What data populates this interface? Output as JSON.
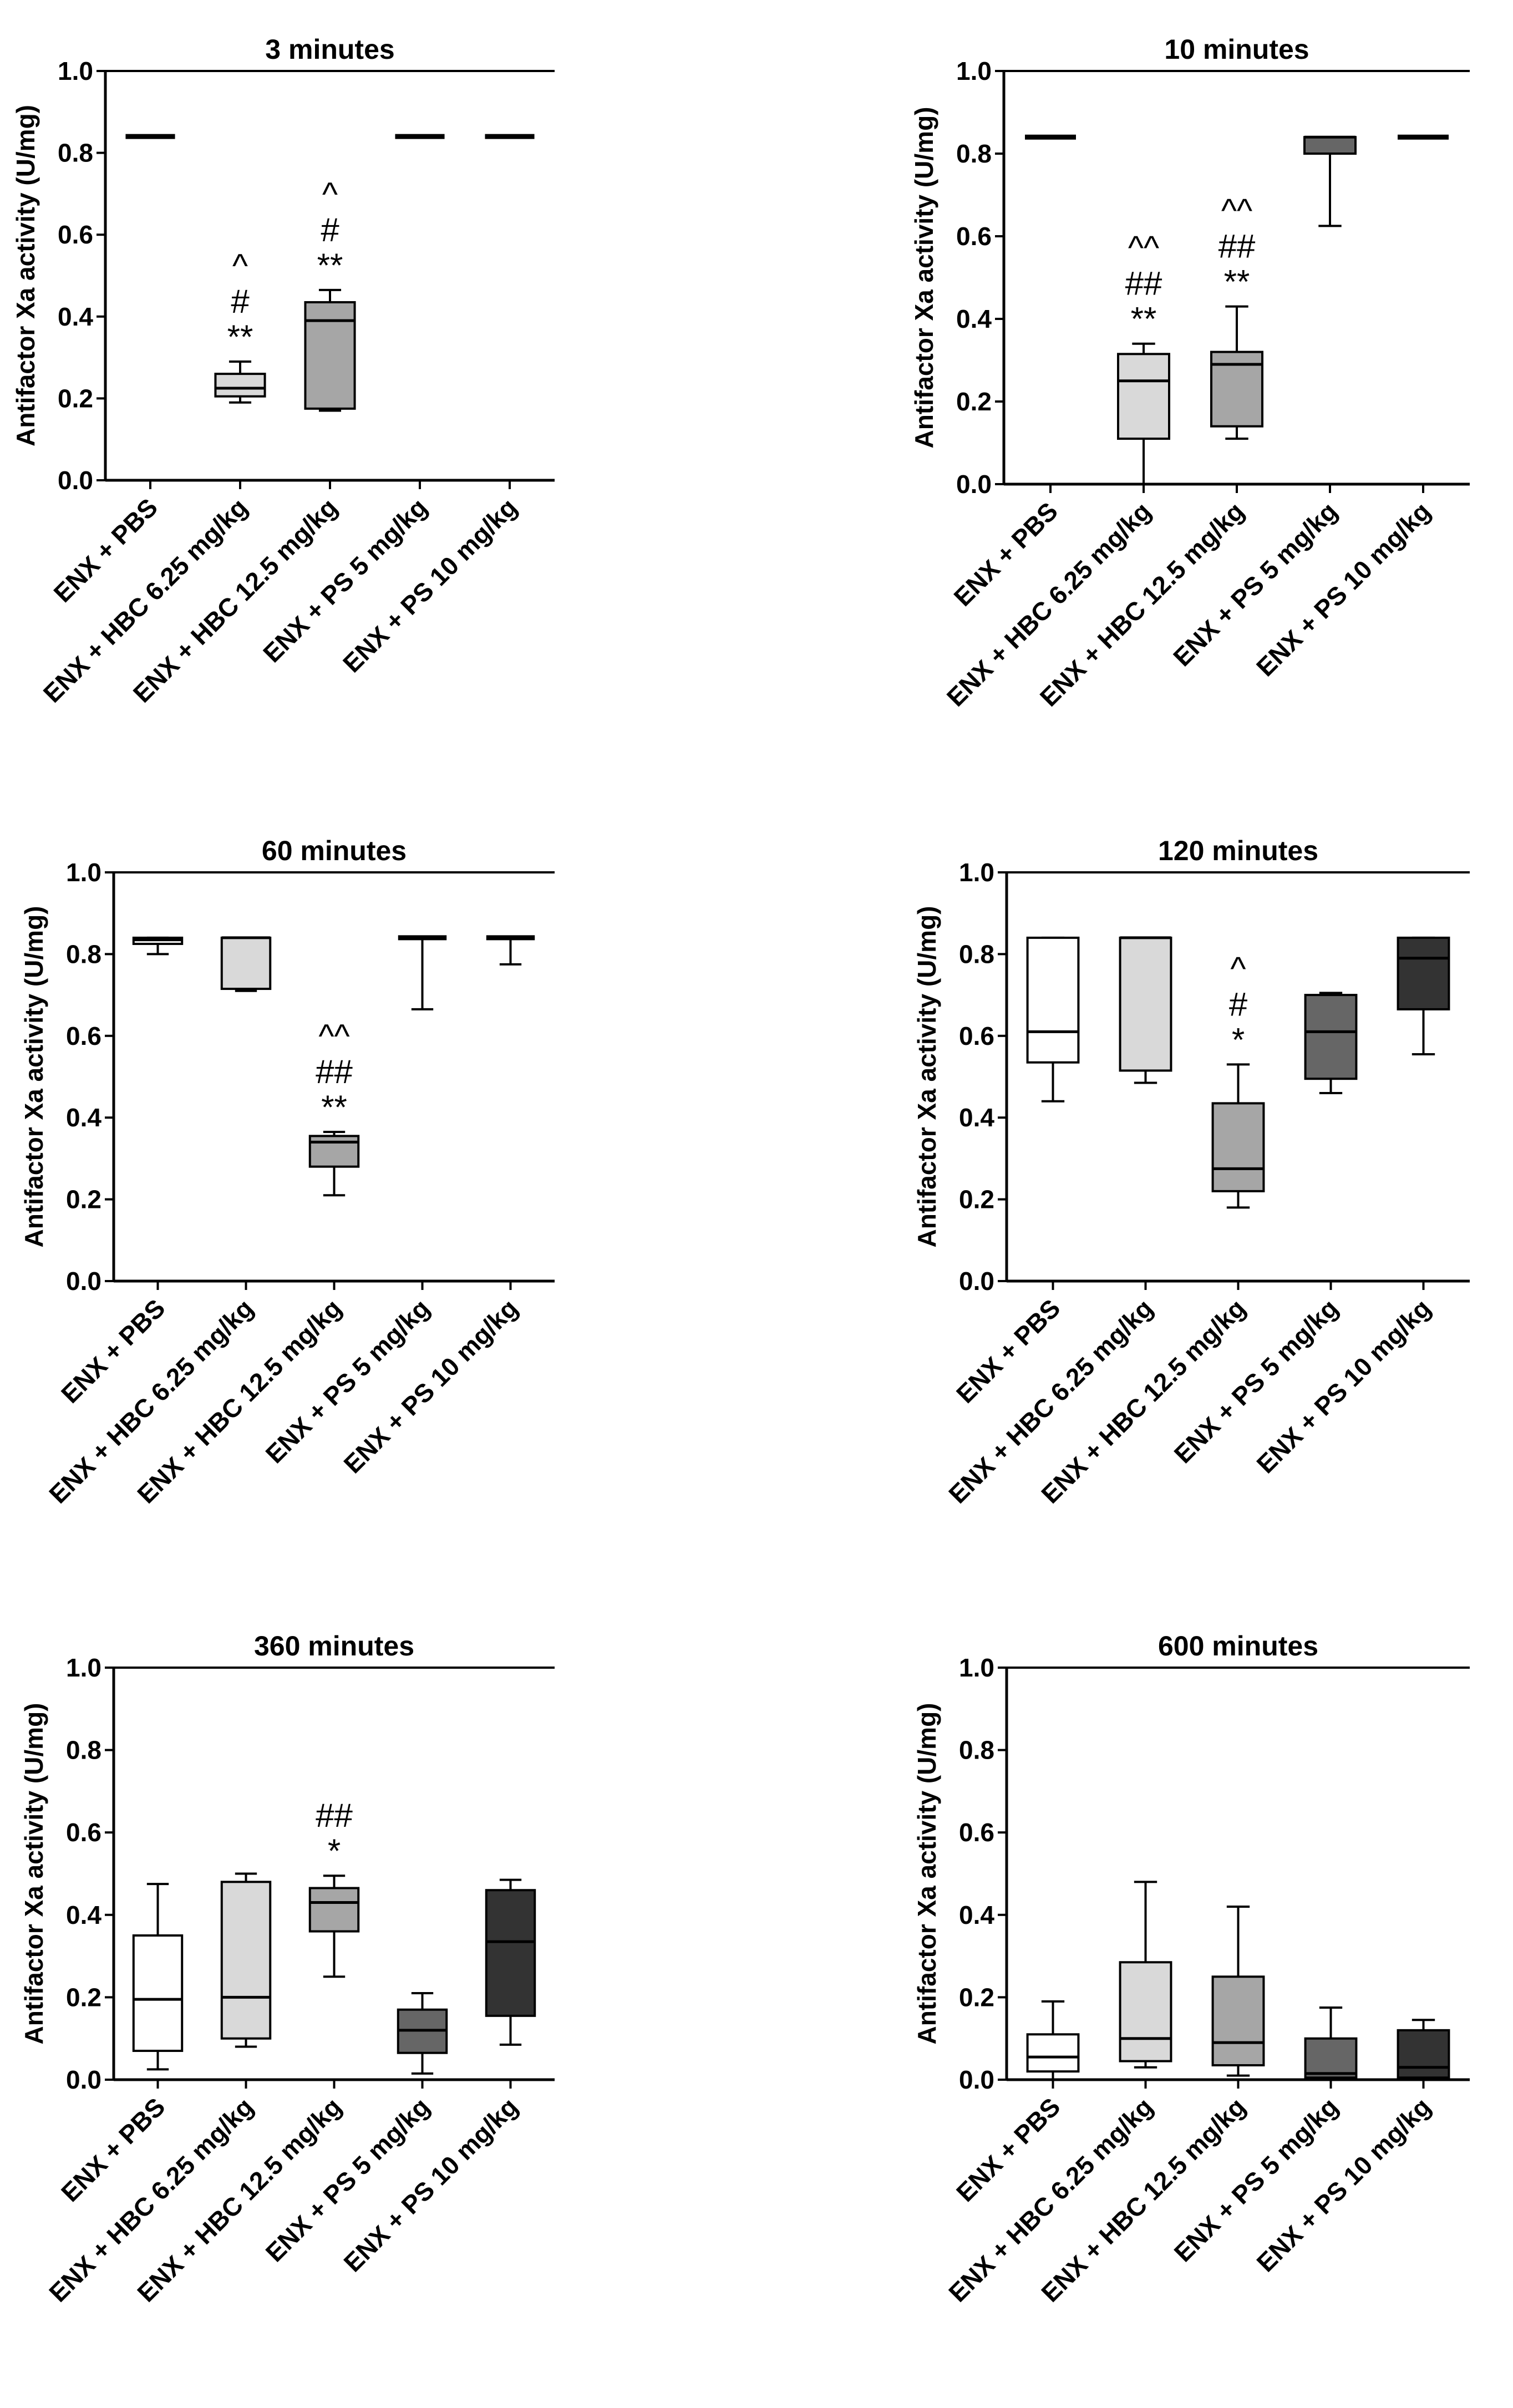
{
  "figure": {
    "ylabel": "Antifactor Xa activity (U/mg)"
  },
  "chart_data": [
    {
      "type": "box",
      "title": "3 minutes",
      "ylabel": "Antifactor Xa activity (U/mg)",
      "ylim": [
        0,
        1.0
      ],
      "yticks": [
        "0.0",
        "0.2",
        "0.4",
        "0.6",
        "0.8",
        "1.0"
      ],
      "categories": [
        "ENX + PBS",
        "ENX + HBC 6.25 mg/kg",
        "ENX + HBC 12.5 mg/kg",
        "ENX + PS 5 mg/kg",
        "ENX + PS 10 mg/kg"
      ],
      "boxes": [
        {
          "min": 0.84,
          "q1": 0.84,
          "median": 0.84,
          "q3": 0.84,
          "max": 0.84,
          "fill": "#ffffff",
          "annotations": []
        },
        {
          "min": 0.19,
          "q1": 0.205,
          "median": 0.225,
          "q3": 0.26,
          "max": 0.29,
          "fill": "#d9d9d9",
          "annotations": [
            "^",
            "#",
            "**"
          ]
        },
        {
          "min": 0.17,
          "q1": 0.175,
          "median": 0.39,
          "q3": 0.435,
          "max": 0.465,
          "fill": "#a6a6a6",
          "annotations": [
            "^",
            "#",
            "**"
          ]
        },
        {
          "min": 0.84,
          "q1": 0.84,
          "median": 0.84,
          "q3": 0.84,
          "max": 0.84,
          "fill": "#666666",
          "annotations": []
        },
        {
          "min": 0.84,
          "q1": 0.84,
          "median": 0.84,
          "q3": 0.84,
          "max": 0.84,
          "fill": "#333333",
          "annotations": []
        }
      ]
    },
    {
      "type": "box",
      "title": "10 minutes",
      "ylabel": "Antifactor Xa activity (U/mg)",
      "ylim": [
        0,
        1.0
      ],
      "yticks": [
        "0.0",
        "0.2",
        "0.4",
        "0.6",
        "0.8",
        "1.0"
      ],
      "categories": [
        "ENX + PBS",
        "ENX + HBC 6.25 mg/kg",
        "ENX + HBC 12.5 mg/kg",
        "ENX + PS 5 mg/kg",
        "ENX + PS 10 mg/kg"
      ],
      "boxes": [
        {
          "min": 0.84,
          "q1": 0.84,
          "median": 0.84,
          "q3": 0.84,
          "max": 0.84,
          "fill": "#ffffff",
          "annotations": []
        },
        {
          "min": 0.0,
          "q1": 0.11,
          "median": 0.25,
          "q3": 0.315,
          "max": 0.34,
          "fill": "#d9d9d9",
          "annotations": [
            "^^",
            "##",
            "**"
          ]
        },
        {
          "min": 0.11,
          "q1": 0.14,
          "median": 0.29,
          "q3": 0.32,
          "max": 0.43,
          "fill": "#a6a6a6",
          "annotations": [
            "^^",
            "##",
            "**"
          ]
        },
        {
          "min": 0.625,
          "q1": 0.8,
          "median": 0.84,
          "q3": 0.84,
          "max": 0.84,
          "fill": "#666666",
          "annotations": []
        },
        {
          "min": 0.84,
          "q1": 0.84,
          "median": 0.84,
          "q3": 0.84,
          "max": 0.84,
          "fill": "#333333",
          "annotations": []
        }
      ]
    },
    {
      "type": "box",
      "title": "60 minutes",
      "ylabel": "Antifactor Xa activity (U/mg)",
      "ylim": [
        0,
        1.0
      ],
      "yticks": [
        "0.0",
        "0.2",
        "0.4",
        "0.6",
        "0.8",
        "1.0"
      ],
      "categories": [
        "ENX + PBS",
        "ENX + HBC 6.25 mg/kg",
        "ENX + HBC 12.5 mg/kg",
        "ENX + PS 5 mg/kg",
        "ENX + PS 10 mg/kg"
      ],
      "boxes": [
        {
          "min": 0.8,
          "q1": 0.825,
          "median": 0.835,
          "q3": 0.84,
          "max": 0.84,
          "fill": "#ffffff",
          "annotations": []
        },
        {
          "min": 0.71,
          "q1": 0.715,
          "median": 0.84,
          "q3": 0.84,
          "max": 0.84,
          "fill": "#d9d9d9",
          "annotations": []
        },
        {
          "min": 0.21,
          "q1": 0.28,
          "median": 0.34,
          "q3": 0.355,
          "max": 0.365,
          "fill": "#a6a6a6",
          "annotations": [
            "^^",
            "##",
            "**"
          ]
        },
        {
          "min": 0.665,
          "q1": 0.84,
          "median": 0.84,
          "q3": 0.84,
          "max": 0.84,
          "fill": "#666666",
          "annotations": []
        },
        {
          "min": 0.775,
          "q1": 0.84,
          "median": 0.84,
          "q3": 0.84,
          "max": 0.84,
          "fill": "#333333",
          "annotations": []
        }
      ]
    },
    {
      "type": "box",
      "title": "120 minutes",
      "ylabel": "Antifactor Xa activity (U/mg)",
      "ylim": [
        0,
        1.0
      ],
      "yticks": [
        "0.0",
        "0.2",
        "0.4",
        "0.6",
        "0.8",
        "1.0"
      ],
      "categories": [
        "ENX + PBS",
        "ENX + HBC 6.25 mg/kg",
        "ENX + HBC 12.5 mg/kg",
        "ENX + PS 5 mg/kg",
        "ENX + PS 10 mg/kg"
      ],
      "boxes": [
        {
          "min": 0.44,
          "q1": 0.535,
          "median": 0.61,
          "q3": 0.84,
          "max": 0.84,
          "fill": "#ffffff",
          "annotations": []
        },
        {
          "min": 0.485,
          "q1": 0.515,
          "median": 0.84,
          "q3": 0.84,
          "max": 0.84,
          "fill": "#d9d9d9",
          "annotations": []
        },
        {
          "min": 0.18,
          "q1": 0.22,
          "median": 0.275,
          "q3": 0.435,
          "max": 0.53,
          "fill": "#a6a6a6",
          "annotations": [
            "^",
            "#",
            "*"
          ]
        },
        {
          "min": 0.46,
          "q1": 0.495,
          "median": 0.61,
          "q3": 0.7,
          "max": 0.705,
          "fill": "#666666",
          "annotations": []
        },
        {
          "min": 0.555,
          "q1": 0.665,
          "median": 0.79,
          "q3": 0.84,
          "max": 0.84,
          "fill": "#333333",
          "annotations": []
        }
      ]
    },
    {
      "type": "box",
      "title": "360 minutes",
      "ylabel": "Antifactor Xa activity (U/mg)",
      "ylim": [
        0,
        1.0
      ],
      "yticks": [
        "0.0",
        "0.2",
        "0.4",
        "0.6",
        "0.8",
        "1.0"
      ],
      "categories": [
        "ENX + PBS",
        "ENX + HBC 6.25 mg/kg",
        "ENX + HBC 12.5 mg/kg",
        "ENX + PS 5 mg/kg",
        "ENX + PS 10 mg/kg"
      ],
      "boxes": [
        {
          "min": 0.025,
          "q1": 0.07,
          "median": 0.195,
          "q3": 0.35,
          "max": 0.475,
          "fill": "#ffffff",
          "annotations": []
        },
        {
          "min": 0.08,
          "q1": 0.1,
          "median": 0.2,
          "q3": 0.48,
          "max": 0.5,
          "fill": "#d9d9d9",
          "annotations": []
        },
        {
          "min": 0.25,
          "q1": 0.36,
          "median": 0.43,
          "q3": 0.465,
          "max": 0.495,
          "fill": "#a6a6a6",
          "annotations": [
            "##",
            "*"
          ]
        },
        {
          "min": 0.015,
          "q1": 0.065,
          "median": 0.12,
          "q3": 0.17,
          "max": 0.21,
          "fill": "#666666",
          "annotations": []
        },
        {
          "min": 0.085,
          "q1": 0.155,
          "median": 0.335,
          "q3": 0.46,
          "max": 0.485,
          "fill": "#333333",
          "annotations": []
        }
      ]
    },
    {
      "type": "box",
      "title": "600 minutes",
      "ylabel": "Antifactor Xa activity (U/mg)",
      "ylim": [
        0,
        1.0
      ],
      "yticks": [
        "0.0",
        "0.2",
        "0.4",
        "0.6",
        "0.8",
        "1.0"
      ],
      "categories": [
        "ENX + PBS",
        "ENX + HBC 6.25 mg/kg",
        "ENX + HBC 12.5 mg/kg",
        "ENX + PS 5 mg/kg",
        "ENX + PS 10 mg/kg"
      ],
      "boxes": [
        {
          "min": 0.0,
          "q1": 0.02,
          "median": 0.055,
          "q3": 0.11,
          "max": 0.19,
          "fill": "#ffffff",
          "annotations": []
        },
        {
          "min": 0.03,
          "q1": 0.045,
          "median": 0.1,
          "q3": 0.285,
          "max": 0.48,
          "fill": "#d9d9d9",
          "annotations": []
        },
        {
          "min": 0.01,
          "q1": 0.035,
          "median": 0.09,
          "q3": 0.25,
          "max": 0.42,
          "fill": "#a6a6a6",
          "annotations": []
        },
        {
          "min": 0.0,
          "q1": 0.005,
          "median": 0.015,
          "q3": 0.1,
          "max": 0.175,
          "fill": "#666666",
          "annotations": []
        },
        {
          "min": 0.0,
          "q1": 0.005,
          "median": 0.03,
          "q3": 0.12,
          "max": 0.145,
          "fill": "#333333",
          "annotations": []
        }
      ]
    }
  ]
}
